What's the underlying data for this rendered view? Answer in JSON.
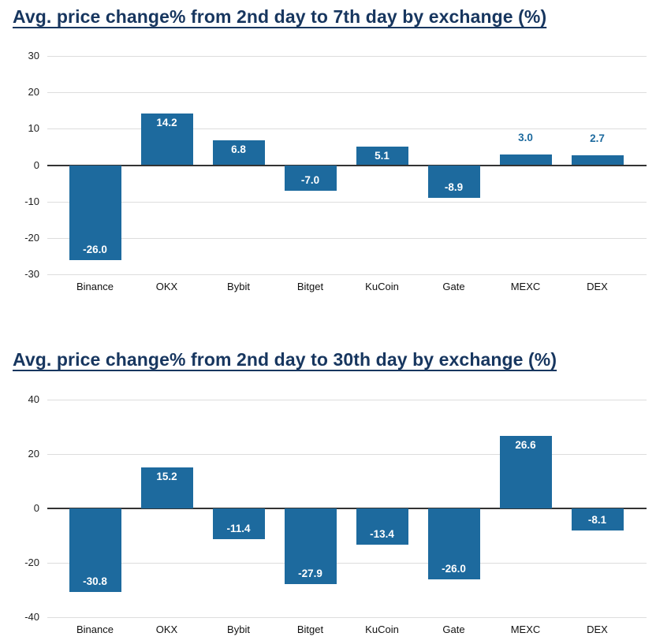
{
  "colors": {
    "bar": "#1d6a9e",
    "title": "#17365f",
    "grid": "#dddddd",
    "zero_line": "#333333",
    "tick_label": "#222222",
    "category_label": "#111111",
    "value_label_inside": "#ffffff",
    "value_label_outside": "#1d6a9e",
    "background": "#ffffff"
  },
  "chart_data": [
    {
      "type": "bar",
      "title": "Avg. price change% from 2nd day to 7th day by exchange (%)",
      "categories": [
        "Binance",
        "OKX",
        "Bybit",
        "Bitget",
        "KuCoin",
        "Gate",
        "MEXC",
        "DEX"
      ],
      "values": [
        -26.0,
        14.2,
        6.8,
        -7.0,
        5.1,
        -8.9,
        3.0,
        2.7
      ],
      "value_labels": [
        "-26.0",
        "14.2",
        "6.8",
        "-7.0",
        "5.1",
        "-8.9",
        "3.0",
        "2.7"
      ],
      "label_position": [
        "inside",
        "inside",
        "inside",
        "inside",
        "inside",
        "inside",
        "outside",
        "outside"
      ],
      "ylim": [
        -30,
        30
      ],
      "yticks": [
        30,
        20,
        10,
        0,
        -10,
        -20,
        -30
      ],
      "xlabel": "",
      "ylabel": "",
      "grid": "on",
      "legend": "none"
    },
    {
      "type": "bar",
      "title": "Avg. price change% from 2nd day to 30th day by exchange (%)",
      "categories": [
        "Binance",
        "OKX",
        "Bybit",
        "Bitget",
        "KuCoin",
        "Gate",
        "MEXC",
        "DEX"
      ],
      "values": [
        -30.8,
        15.2,
        -11.4,
        -27.9,
        -13.4,
        -26.0,
        26.6,
        -8.1
      ],
      "value_labels": [
        "-30.8",
        "15.2",
        "-11.4",
        "-27.9",
        "-13.4",
        "-26.0",
        "26.6",
        "-8.1"
      ],
      "label_position": [
        "inside",
        "inside",
        "inside",
        "inside",
        "inside",
        "inside",
        "inside",
        "inside"
      ],
      "ylim": [
        -40,
        40
      ],
      "yticks": [
        40,
        20,
        0,
        -20,
        -40
      ],
      "xlabel": "",
      "ylabel": "",
      "grid": "on",
      "legend": "none"
    }
  ]
}
